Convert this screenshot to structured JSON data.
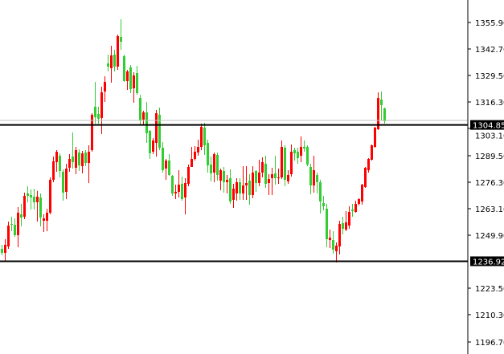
{
  "chart_data": {
    "type": "candlestick",
    "title": "",
    "xlabel": "",
    "ylabel": "",
    "ylim": [
      1193.6,
      1367.1
    ],
    "grid": false,
    "colors": {
      "bullish": "#ff0000",
      "bearish": "#32cd32",
      "levels": "#000000",
      "bid_line": "#c0c0c0",
      "axis": "#000000",
      "background": "#ffffff"
    },
    "y_ticks": [
      "1355.90",
      "1342.70",
      "1329.50",
      "1316.30",
      "1303.10",
      "1289.50",
      "1276.30",
      "1263.10",
      "1249.90",
      "1223.50",
      "1210.30",
      "1196.70"
    ],
    "horizontal_levels": [
      {
        "value": 1304.85,
        "label": "1304.85"
      },
      {
        "value": 1236.92,
        "label": "1236.92"
      }
    ],
    "bid_line": 1307.1,
    "ohlc_columns": [
      "open",
      "high",
      "low",
      "close"
    ],
    "candles": [
      [
        1243.1,
        1245.1,
        1239.9,
        1241.1
      ],
      [
        1241.1,
        1247.9,
        1237.1,
        1245.1
      ],
      [
        1244.3,
        1256.7,
        1243.1,
        1254.7
      ],
      [
        1255.5,
        1259.1,
        1251.9,
        1255.1
      ],
      [
        1255.1,
        1258.3,
        1249.1,
        1249.9
      ],
      [
        1249.9,
        1263.9,
        1243.9,
        1261.1
      ],
      [
        1260.3,
        1265.5,
        1254.3,
        1258.7
      ],
      [
        1259.1,
        1271.1,
        1257.9,
        1269.5
      ],
      [
        1270.7,
        1274.3,
        1266.3,
        1269.5
      ],
      [
        1269.9,
        1272.7,
        1262.7,
        1268.7
      ],
      [
        1269.1,
        1273.1,
        1262.7,
        1266.3
      ],
      [
        1266.3,
        1272.0,
        1256.7,
        1269.1
      ],
      [
        1268.7,
        1270.7,
        1254.3,
        1258.7
      ],
      [
        1257.1,
        1260.3,
        1251.5,
        1258.3
      ],
      [
        1257.1,
        1263.0,
        1251.9,
        1261.1
      ],
      [
        1261.1,
        1278.7,
        1260.3,
        1277.5
      ],
      [
        1277.5,
        1289.1,
        1276.3,
        1286.7
      ],
      [
        1286.3,
        1292.3,
        1281.5,
        1291.5
      ],
      [
        1289.5,
        1290.7,
        1278.7,
        1281.9
      ],
      [
        1281.5,
        1282.7,
        1267.1,
        1271.1
      ],
      [
        1271.5,
        1285.5,
        1267.9,
        1283.1
      ],
      [
        1283.5,
        1290.3,
        1281.5,
        1287.9
      ],
      [
        1289.1,
        1301.1,
        1283.1,
        1286.3
      ],
      [
        1283.5,
        1293.9,
        1280.3,
        1292.3
      ],
      [
        1291.1,
        1292.7,
        1281.9,
        1284.7
      ],
      [
        1284.3,
        1291.9,
        1280.7,
        1290.7
      ],
      [
        1291.1,
        1292.3,
        1284.3,
        1285.9
      ],
      [
        1285.9,
        1294.7,
        1275.9,
        1291.5
      ],
      [
        1292.3,
        1310.7,
        1291.5,
        1309.9
      ],
      [
        1313.9,
        1326.3,
        1305.5,
        1308.7
      ],
      [
        1310.3,
        1313.9,
        1305.5,
        1307.9
      ],
      [
        1308.3,
        1323.9,
        1300.3,
        1321.1
      ],
      [
        1321.5,
        1329.1,
        1316.3,
        1326.3
      ],
      [
        1335.5,
        1339.9,
        1331.5,
        1333.9
      ],
      [
        1333.1,
        1344.3,
        1325.9,
        1339.5
      ],
      [
        1339.9,
        1342.3,
        1331.5,
        1333.9
      ],
      [
        1333.9,
        1349.9,
        1332.3,
        1349.1
      ],
      [
        1348.7,
        1357.5,
        1342.3,
        1346.3
      ],
      [
        1339.1,
        1339.9,
        1326.3,
        1326.7
      ],
      [
        1326.7,
        1332.3,
        1322.3,
        1331.5
      ],
      [
        1333.5,
        1334.7,
        1320.7,
        1322.7
      ],
      [
        1323.1,
        1331.1,
        1315.9,
        1329.5
      ],
      [
        1330.7,
        1334.3,
        1319.9,
        1320.7
      ],
      [
        1318.3,
        1319.9,
        1304.7,
        1307.1
      ],
      [
        1307.5,
        1311.9,
        1304.7,
        1311.1
      ],
      [
        1311.1,
        1316.3,
        1295.9,
        1300.7
      ],
      [
        1301.9,
        1302.3,
        1287.9,
        1290.7
      ],
      [
        1291.5,
        1298.3,
        1290.3,
        1297.1
      ],
      [
        1295.9,
        1312.3,
        1289.1,
        1310.7
      ],
      [
        1309.9,
        1313.5,
        1292.3,
        1293.5
      ],
      [
        1293.5,
        1296.3,
        1281.1,
        1282.3
      ],
      [
        1283.1,
        1287.9,
        1277.5,
        1287.1
      ],
      [
        1287.1,
        1290.3,
        1279.5,
        1279.9
      ],
      [
        1279.5,
        1279.9,
        1269.5,
        1270.7
      ],
      [
        1270.7,
        1275.1,
        1267.9,
        1271.5
      ],
      [
        1271.5,
        1282.3,
        1268.7,
        1275.1
      ],
      [
        1275.5,
        1279.1,
        1267.1,
        1267.9
      ],
      [
        1268.7,
        1278.3,
        1260.3,
        1275.9
      ],
      [
        1275.5,
        1285.1,
        1274.3,
        1283.9
      ],
      [
        1283.9,
        1293.9,
        1284.3,
        1287.9
      ],
      [
        1287.9,
        1294.3,
        1287.1,
        1291.5
      ],
      [
        1291.1,
        1297.5,
        1289.5,
        1293.9
      ],
      [
        1293.9,
        1305.5,
        1292.3,
        1303.9
      ],
      [
        1303.5,
        1305.9,
        1289.9,
        1294.7
      ],
      [
        1295.9,
        1297.5,
        1281.1,
        1284.7
      ],
      [
        1285.1,
        1289.1,
        1276.7,
        1280.7
      ],
      [
        1281.1,
        1291.1,
        1276.3,
        1290.3
      ],
      [
        1289.9,
        1291.1,
        1277.1,
        1279.9
      ],
      [
        1277.1,
        1283.1,
        1272.3,
        1282.3
      ],
      [
        1281.9,
        1283.9,
        1271.1,
        1276.3
      ],
      [
        1276.3,
        1279.9,
        1270.7,
        1277.5
      ],
      [
        1278.3,
        1282.7,
        1265.5,
        1266.7
      ],
      [
        1267.5,
        1275.5,
        1263.5,
        1273.1
      ],
      [
        1270.7,
        1278.3,
        1267.1,
        1276.3
      ],
      [
        1276.3,
        1278.3,
        1267.5,
        1270.7
      ],
      [
        1270.7,
        1284.3,
        1267.5,
        1274.7
      ],
      [
        1274.7,
        1284.3,
        1267.5,
        1275.9
      ],
      [
        1277.1,
        1280.3,
        1265.1,
        1269.9
      ],
      [
        1269.9,
        1284.3,
        1268.3,
        1281.1
      ],
      [
        1281.9,
        1282.3,
        1271.5,
        1275.9
      ],
      [
        1275.9,
        1287.5,
        1274.3,
        1281.1
      ],
      [
        1281.1,
        1288.7,
        1278.7,
        1286.3
      ],
      [
        1285.5,
        1289.5,
        1273.5,
        1275.5
      ],
      [
        1275.9,
        1280.3,
        1269.9,
        1277.9
      ],
      [
        1278.3,
        1283.5,
        1269.9,
        1280.3
      ],
      [
        1280.7,
        1289.5,
        1275.1,
        1278.3
      ],
      [
        1278.3,
        1283.1,
        1275.5,
        1278.7
      ],
      [
        1278.7,
        1297.1,
        1277.9,
        1293.9
      ],
      [
        1293.5,
        1294.7,
        1274.3,
        1277.5
      ],
      [
        1276.7,
        1282.3,
        1275.5,
        1279.9
      ],
      [
        1280.3,
        1295.1,
        1279.1,
        1291.5
      ],
      [
        1292.3,
        1293.5,
        1287.1,
        1290.7
      ],
      [
        1291.5,
        1293.5,
        1285.5,
        1288.3
      ],
      [
        1289.5,
        1299.1,
        1286.3,
        1293.9
      ],
      [
        1293.9,
        1297.1,
        1291.5,
        1293.1
      ],
      [
        1293.9,
        1294.7,
        1284.3,
        1285.1
      ],
      [
        1283.9,
        1285.5,
        1270.3,
        1274.7
      ],
      [
        1274.7,
        1289.5,
        1271.1,
        1282.3
      ],
      [
        1279.9,
        1281.1,
        1270.7,
        1276.3
      ],
      [
        1276.3,
        1277.5,
        1260.7,
        1266.7
      ],
      [
        1265.9,
        1269.5,
        1262.3,
        1264.3
      ],
      [
        1263.1,
        1265.5,
        1243.9,
        1247.9
      ],
      [
        1247.5,
        1252.7,
        1243.5,
        1248.7
      ],
      [
        1247.5,
        1251.9,
        1240.7,
        1242.7
      ],
      [
        1241.9,
        1246.3,
        1236.3,
        1244.7
      ],
      [
        1244.3,
        1257.1,
        1240.3,
        1255.5
      ],
      [
        1255.9,
        1259.1,
        1250.3,
        1253.1
      ],
      [
        1252.7,
        1261.9,
        1251.9,
        1256.3
      ],
      [
        1254.7,
        1264.3,
        1253.1,
        1261.5
      ],
      [
        1262.7,
        1265.5,
        1259.1,
        1261.9
      ],
      [
        1261.5,
        1267.1,
        1261.1,
        1265.5
      ],
      [
        1265.5,
        1268.3,
        1264.7,
        1267.9
      ],
      [
        1266.7,
        1275.5,
        1265.1,
        1275.1
      ],
      [
        1273.9,
        1283.9,
        1273.5,
        1283.5
      ],
      [
        1282.3,
        1288.3,
        1281.1,
        1287.9
      ],
      [
        1287.5,
        1295.1,
        1287.1,
        1294.7
      ],
      [
        1293.9,
        1303.9,
        1293.5,
        1303.5
      ],
      [
        1302.7,
        1321.1,
        1302.3,
        1318.3
      ],
      [
        1317.5,
        1321.5,
        1307.1,
        1314.7
      ],
      [
        1313.1,
        1313.5,
        1305.5,
        1306.7
      ]
    ]
  }
}
